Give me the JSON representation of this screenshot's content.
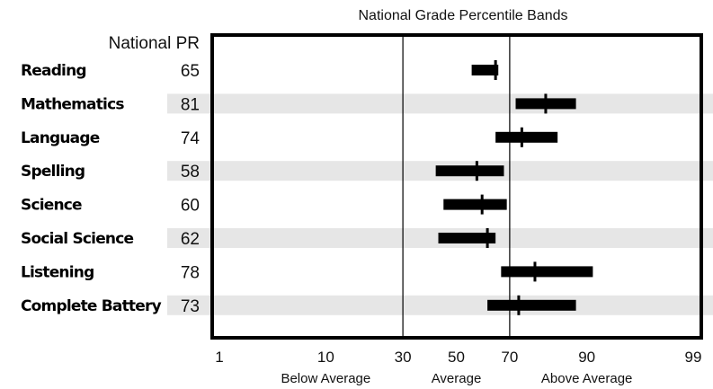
{
  "chart_data": {
    "type": "range-band",
    "title": "National Grade Percentile Bands",
    "value_header": "National PR",
    "x_ticks": [
      1,
      10,
      30,
      50,
      70,
      90,
      99
    ],
    "reference_lines": [
      30,
      70
    ],
    "zone_labels": [
      {
        "label": "Below Average",
        "at": 10
      },
      {
        "label": "Average",
        "at": 50
      },
      {
        "label": "Above Average",
        "at": 90
      }
    ],
    "rows": [
      {
        "subject": "Reading",
        "pr": 65,
        "band": [
          56,
          66
        ],
        "shaded": false
      },
      {
        "subject": "Mathematics",
        "pr": 81,
        "band": [
          72,
          88
        ],
        "shaded": true
      },
      {
        "subject": "Language",
        "pr": 74,
        "band": [
          65,
          84
        ],
        "shaded": false
      },
      {
        "subject": "Spelling",
        "pr": 58,
        "band": [
          42,
          68
        ],
        "shaded": true
      },
      {
        "subject": "Science",
        "pr": 60,
        "band": [
          45,
          69
        ],
        "shaded": false
      },
      {
        "subject": "Social Science",
        "pr": 62,
        "band": [
          43,
          65
        ],
        "shaded": true
      },
      {
        "subject": "Listening",
        "pr": 78,
        "band": [
          67,
          91
        ],
        "shaded": false
      },
      {
        "subject": "Complete Battery",
        "pr": 73,
        "band": [
          62,
          88
        ],
        "shaded": true
      }
    ]
  }
}
